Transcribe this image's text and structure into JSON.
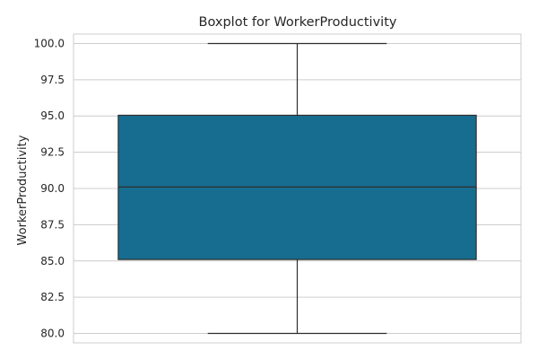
{
  "chart_data": {
    "type": "box",
    "title": "Boxplot for WorkerProductivity",
    "xlabel": "",
    "ylabel": "WorkerProductivity",
    "ylim": [
      79.35,
      100.65
    ],
    "yticks": [
      "80.0",
      "82.5",
      "85.0",
      "87.5",
      "90.0",
      "92.5",
      "95.0",
      "97.5",
      "100.0"
    ],
    "grid": true,
    "series": [
      {
        "min": 80.0,
        "q1": 85.1,
        "median": 90.1,
        "q3": 95.05,
        "max": 100.0
      }
    ],
    "colors": {
      "box_fill": "#176D90",
      "box_edge": "#2E2E2E",
      "grid": "#CCCCCC",
      "frame": "#CCCCCC",
      "text": "#262626"
    }
  }
}
